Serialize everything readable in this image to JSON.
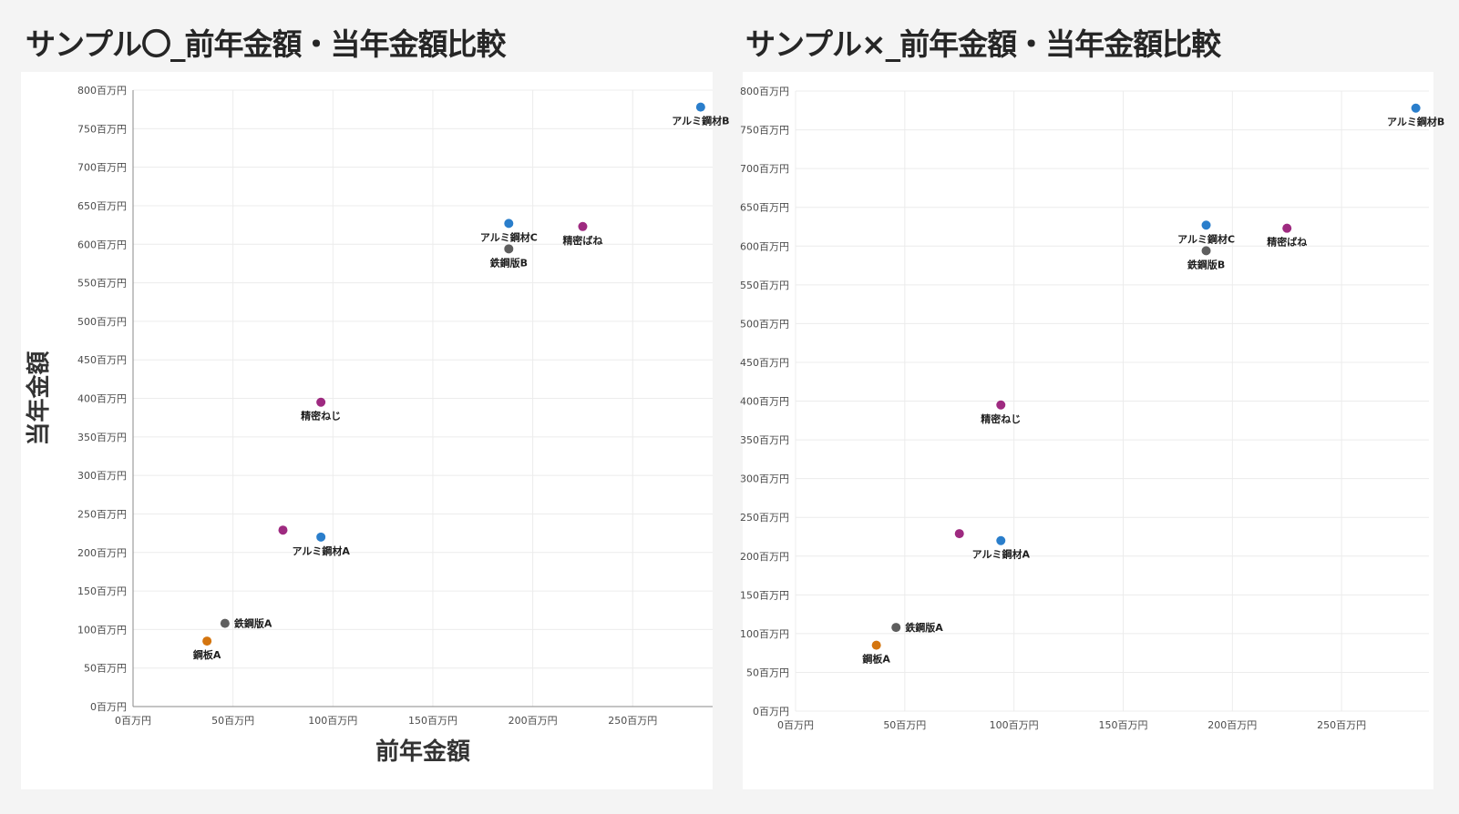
{
  "titles": {
    "left": "サンプル〇_前年金額・当年金額比較",
    "right": "サンプル×_前年金額・当年金額比較"
  },
  "colors": {
    "blue": "#2a7ecb",
    "gray": "#5e5e5e",
    "purple": "#9e2a80",
    "orange": "#d4750f"
  },
  "chart_data": [
    {
      "type": "scatter",
      "title": "サンプル〇_前年金額・当年金額比較",
      "xlabel": "前年金額",
      "ylabel": "当年金額",
      "xlim": [
        0,
        290
      ],
      "ylim": [
        0,
        800
      ],
      "x_ticks": [
        0,
        50,
        100,
        150,
        200,
        250
      ],
      "y_ticks": [
        0,
        50,
        100,
        150,
        200,
        250,
        300,
        350,
        400,
        450,
        500,
        550,
        600,
        650,
        700,
        750,
        800
      ],
      "tick_suffix": "百万円",
      "grid": true,
      "points": [
        {
          "label": "アルミ鋼材B",
          "x": 284,
          "y": 778,
          "color": "blue",
          "label_pos": "below"
        },
        {
          "label": "アルミ鋼材C",
          "x": 188,
          "y": 627,
          "color": "blue",
          "label_pos": "below"
        },
        {
          "label": "精密ばね",
          "x": 225,
          "y": 623,
          "color": "purple",
          "label_pos": "below"
        },
        {
          "label": "鉄鋼版B",
          "x": 188,
          "y": 594,
          "color": "gray",
          "label_pos": "below"
        },
        {
          "label": "精密ねじ",
          "x": 94,
          "y": 395,
          "color": "purple",
          "label_pos": "below"
        },
        {
          "label": "",
          "x": 75,
          "y": 229,
          "color": "purple",
          "label_pos": "none"
        },
        {
          "label": "アルミ鋼材A",
          "x": 94,
          "y": 220,
          "color": "blue",
          "label_pos": "below"
        },
        {
          "label": "鉄鋼版A",
          "x": 46,
          "y": 108,
          "color": "gray",
          "label_pos": "right"
        },
        {
          "label": "鋼板A",
          "x": 37,
          "y": 85,
          "color": "orange",
          "label_pos": "below"
        }
      ]
    },
    {
      "type": "scatter",
      "title": "サンプル×_前年金額・当年金額比較",
      "xlabel": "",
      "ylabel": "",
      "xlim": [
        0,
        290
      ],
      "ylim": [
        0,
        800
      ],
      "x_ticks": [
        0,
        50,
        100,
        150,
        200,
        250
      ],
      "y_ticks": [
        0,
        50,
        100,
        150,
        200,
        250,
        300,
        350,
        400,
        450,
        500,
        550,
        600,
        650,
        700,
        750,
        800
      ],
      "tick_suffix": "百万円",
      "grid": true,
      "points": [
        {
          "label": "アルミ鋼材B",
          "x": 284,
          "y": 778,
          "color": "blue",
          "label_pos": "below"
        },
        {
          "label": "アルミ鋼材C",
          "x": 188,
          "y": 627,
          "color": "blue",
          "label_pos": "below"
        },
        {
          "label": "精密ばね",
          "x": 225,
          "y": 623,
          "color": "purple",
          "label_pos": "below"
        },
        {
          "label": "鉄鋼版B",
          "x": 188,
          "y": 594,
          "color": "gray",
          "label_pos": "below"
        },
        {
          "label": "精密ねじ",
          "x": 94,
          "y": 395,
          "color": "purple",
          "label_pos": "below"
        },
        {
          "label": "",
          "x": 75,
          "y": 229,
          "color": "purple",
          "label_pos": "none"
        },
        {
          "label": "アルミ鋼材A",
          "x": 94,
          "y": 220,
          "color": "blue",
          "label_pos": "below"
        },
        {
          "label": "鉄鋼版A",
          "x": 46,
          "y": 108,
          "color": "gray",
          "label_pos": "right"
        },
        {
          "label": "鋼板A",
          "x": 37,
          "y": 85,
          "color": "orange",
          "label_pos": "below"
        }
      ]
    }
  ]
}
